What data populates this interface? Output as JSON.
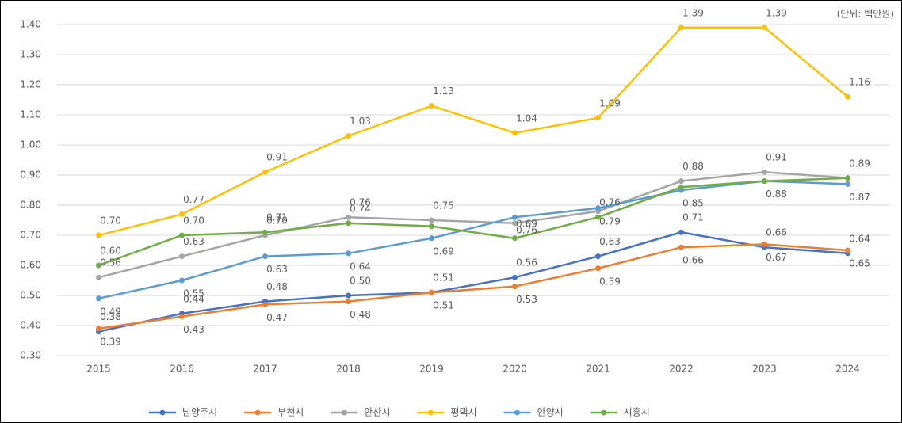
{
  "chart_data": {
    "type": "line",
    "annotation": "(단위: 백만원)",
    "categories": [
      "2015",
      "2016",
      "2017",
      "2018",
      "2019",
      "2020",
      "2021",
      "2022",
      "2023",
      "2024"
    ],
    "ylim": [
      0.3,
      1.4
    ],
    "yticks": [
      {
        "value": 0.3,
        "label": "0.30"
      },
      {
        "value": 0.4,
        "label": "0.40"
      },
      {
        "value": 0.5,
        "label": "0.50"
      },
      {
        "value": 0.6,
        "label": "0.60"
      },
      {
        "value": 0.7,
        "label": "0.70"
      },
      {
        "value": 0.8,
        "label": "0.80"
      },
      {
        "value": 0.9,
        "label": "0.90"
      },
      {
        "value": 1.0,
        "label": "1.00"
      },
      {
        "value": 1.1,
        "label": "1.10"
      },
      {
        "value": 1.2,
        "label": "1.20"
      },
      {
        "value": 1.3,
        "label": "1.30"
      },
      {
        "value": 1.4,
        "label": "1.40"
      }
    ],
    "grid": true,
    "legend": "bottom",
    "series": [
      {
        "name": "남양주시",
        "color": "#4472c4",
        "values": [
          0.38,
          0.44,
          0.48,
          0.5,
          0.51,
          0.56,
          0.63,
          0.71,
          0.66,
          0.64
        ],
        "value_labels": [
          "0.38",
          "0.44",
          "0.48",
          "0.50",
          "0.51",
          "0.56",
          "0.63",
          "0.71",
          "0.66",
          "0.64"
        ]
      },
      {
        "name": "부천시",
        "color": "#ed7d31",
        "values": [
          0.39,
          0.43,
          0.47,
          0.48,
          0.51,
          0.53,
          0.59,
          0.66,
          0.67,
          0.65
        ],
        "value_labels": [
          "0.39",
          "0.43",
          "0.47",
          "0.48",
          "0.51",
          "0.53",
          "0.59",
          "0.66",
          "0.67",
          "0.65"
        ]
      },
      {
        "name": "안산시",
        "color": "#a5a5a5",
        "values": [
          0.56,
          0.63,
          0.7,
          0.76,
          0.75,
          0.74,
          0.78,
          0.88,
          0.91,
          0.89
        ],
        "value_labels": [
          "0.56",
          "0.63",
          "0.70",
          "0.76",
          "0.75",
          null,
          null,
          "0.88",
          "0.91",
          null
        ]
      },
      {
        "name": "평택시",
        "color": "#ffc000",
        "values": [
          0.7,
          0.77,
          0.91,
          1.03,
          1.13,
          1.04,
          1.09,
          1.39,
          1.39,
          1.16
        ],
        "value_labels": [
          "0.70",
          "0.77",
          "0.91",
          "1.03",
          "1.13",
          "1.04",
          "1.09",
          "1.39",
          "1.39",
          "1.16"
        ]
      },
      {
        "name": "안양시",
        "color": "#5b9bd5",
        "values": [
          0.49,
          0.55,
          0.63,
          0.64,
          0.69,
          0.76,
          0.79,
          0.85,
          0.88,
          0.87
        ],
        "value_labels": [
          "0.49",
          "0.55",
          "0.63",
          "0.64",
          "0.69",
          "0.76",
          "0.79",
          "0.85",
          "0.88",
          "0.87"
        ]
      },
      {
        "name": "시흥시",
        "color": "#70ad47",
        "values": [
          0.6,
          0.7,
          0.71,
          0.74,
          0.73,
          0.69,
          0.76,
          0.86,
          0.88,
          0.89
        ],
        "value_labels": [
          "0.60",
          "0.70",
          "0.71",
          "0.74",
          null,
          "0.69",
          "0.76",
          null,
          null,
          "0.89"
        ]
      }
    ]
  }
}
